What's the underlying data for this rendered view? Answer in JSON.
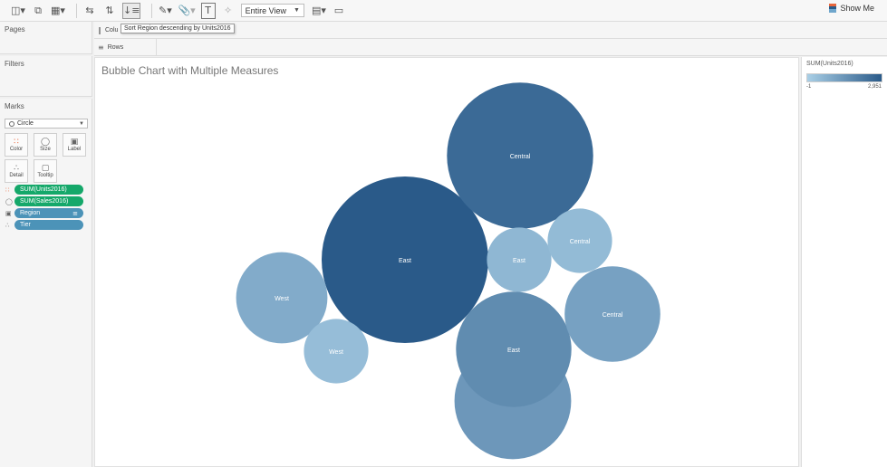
{
  "toolbar": {
    "view_select": "Entire View",
    "show_me": "Show Me",
    "sort_tooltip": "Sort Region descending by Units2016"
  },
  "panels": {
    "pages": "Pages",
    "filters": "Filters",
    "marks": "Marks"
  },
  "marks": {
    "type": "Circle",
    "buttons": {
      "color": "Color",
      "size": "Size",
      "label": "Label",
      "detail": "Detail",
      "tooltip": "Tooltip"
    },
    "pills": [
      {
        "label": "SUM(Units2016)",
        "icon": "color-dots-icon",
        "color": "#15a86a"
      },
      {
        "label": "SUM(Sales2016)",
        "icon": "size-icon",
        "color": "#15a86a"
      },
      {
        "label": "Region",
        "icon": "label-icon",
        "color": "#4c93b8"
      },
      {
        "label": "Tier",
        "icon": "detail-icon",
        "color": "#4c93b8"
      }
    ]
  },
  "shelves": {
    "columns": "Colu",
    "rows": "Rows"
  },
  "view": {
    "title": "Bubble Chart with Multiple Measures"
  },
  "legend": {
    "title": "SUM(Units2016)",
    "min": "-1",
    "max": "2,951",
    "color_min": "#a9cfe6",
    "color_max": "#2a5a89"
  },
  "chart_data": {
    "type": "bubble",
    "title": "Bubble Chart with Multiple Measures",
    "color_measure": "SUM(Units2016)",
    "size_measure": "SUM(Sales2016)",
    "label_field": "Region",
    "color_range": [
      -1,
      2951
    ],
    "bubbles": [
      {
        "label": "East",
        "units": 2951,
        "size": 1.0
      },
      {
        "label": "Central",
        "units": 2550,
        "size": 0.77
      },
      {
        "label": "West",
        "units": 1400,
        "size": 0.49
      },
      {
        "label": "East",
        "units": 1700,
        "size": 0.48
      },
      {
        "label": "West",
        "units": 900,
        "size": 0.3
      },
      {
        "label": "Central",
        "units": 1150,
        "size": 0.33
      },
      {
        "label": "East",
        "units": 600,
        "size": 0.15
      },
      {
        "label": "Central",
        "units": 500,
        "size": 0.15
      },
      {
        "label": "West",
        "units": 450,
        "size": 0.15
      }
    ]
  }
}
